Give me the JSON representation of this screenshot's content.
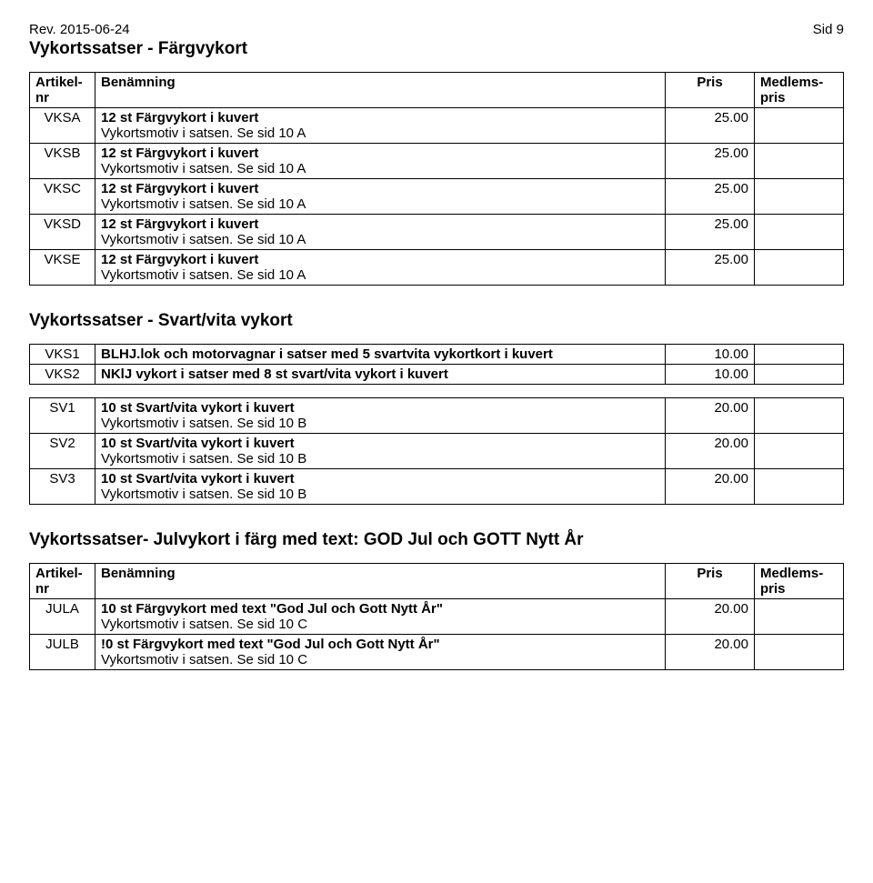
{
  "top": {
    "rev": "Rev. 2015-06-24",
    "page": "Sid 9"
  },
  "section1": {
    "title": "Vykortssatser - Färgvykort",
    "header": {
      "code": "Artikel-\nnr",
      "name": "Benämning",
      "price": "Pris",
      "mem": "Medlems-\npris"
    },
    "rows": [
      {
        "code": "VKSA",
        "name": "12 st Färgvykort i kuvert",
        "sub": "Vykortsmotiv i satsen. Se sid 10 A",
        "price": "25.00"
      },
      {
        "code": "VKSB",
        "name": "12 st Färgvykort i kuvert",
        "sub": "Vykortsmotiv i satsen. Se sid 10 A",
        "price": "25.00"
      },
      {
        "code": "VKSC",
        "name": "12 st Färgvykort i kuvert",
        "sub": "Vykortsmotiv i satsen. Se sid 10 A",
        "price": "25.00"
      },
      {
        "code": "VKSD",
        "name": "12 st Färgvykort i kuvert",
        "sub": "Vykortsmotiv i satsen. Se sid 10 A",
        "price": "25.00"
      },
      {
        "code": "VKSE",
        "name": "12 st Färgvykort i kuvert",
        "sub": "Vykortsmotiv i satsen. Se sid 10 A",
        "price": "25.00"
      }
    ]
  },
  "section2": {
    "title": "Vykortssatser - Svart/vita vykort",
    "rowsA": [
      {
        "code": "VKS1",
        "name": "BLHJ.lok och motorvagnar i satser med 5 svartvita vykortkort i kuvert",
        "price": "10.00"
      },
      {
        "code": "VKS2",
        "name": "NKlJ vykort i satser med 8 st svart/vita vykort i kuvert",
        "price": "10.00"
      }
    ],
    "rowsB": [
      {
        "code": "SV1",
        "name": "10 st Svart/vita vykort i kuvert",
        "sub": "Vykortsmotiv i satsen. Se sid 10 B",
        "price": "20.00"
      },
      {
        "code": "SV2",
        "name": "10 st Svart/vita vykort i kuvert",
        "sub": "Vykortsmotiv i satsen. Se sid 10 B",
        "price": "20.00"
      },
      {
        "code": "SV3",
        "name": "10 st Svart/vita vykort i kuvert",
        "sub": "Vykortsmotiv i satsen. Se sid 10 B",
        "price": "20.00"
      }
    ]
  },
  "section3": {
    "title": "Vykortssatser- Julvykort i färg med text: GOD Jul och GOTT Nytt År",
    "header": {
      "code": "Artikel-\nnr",
      "name": "Benämning",
      "price": "Pris",
      "mem": "Medlems-\npris"
    },
    "rows": [
      {
        "code": "JULA",
        "name": "10 st Färgvykort med text \"God Jul och Gott Nytt År\"",
        "sub": "Vykortsmotiv i satsen. Se sid 10 C",
        "price": "20.00"
      },
      {
        "code": "JULB",
        "name": "!0 st Färgvykort med text \"God Jul och Gott Nytt År\"",
        "sub": "Vykortsmotiv i satsen. Se sid 10 C",
        "price": "20.00"
      }
    ]
  }
}
